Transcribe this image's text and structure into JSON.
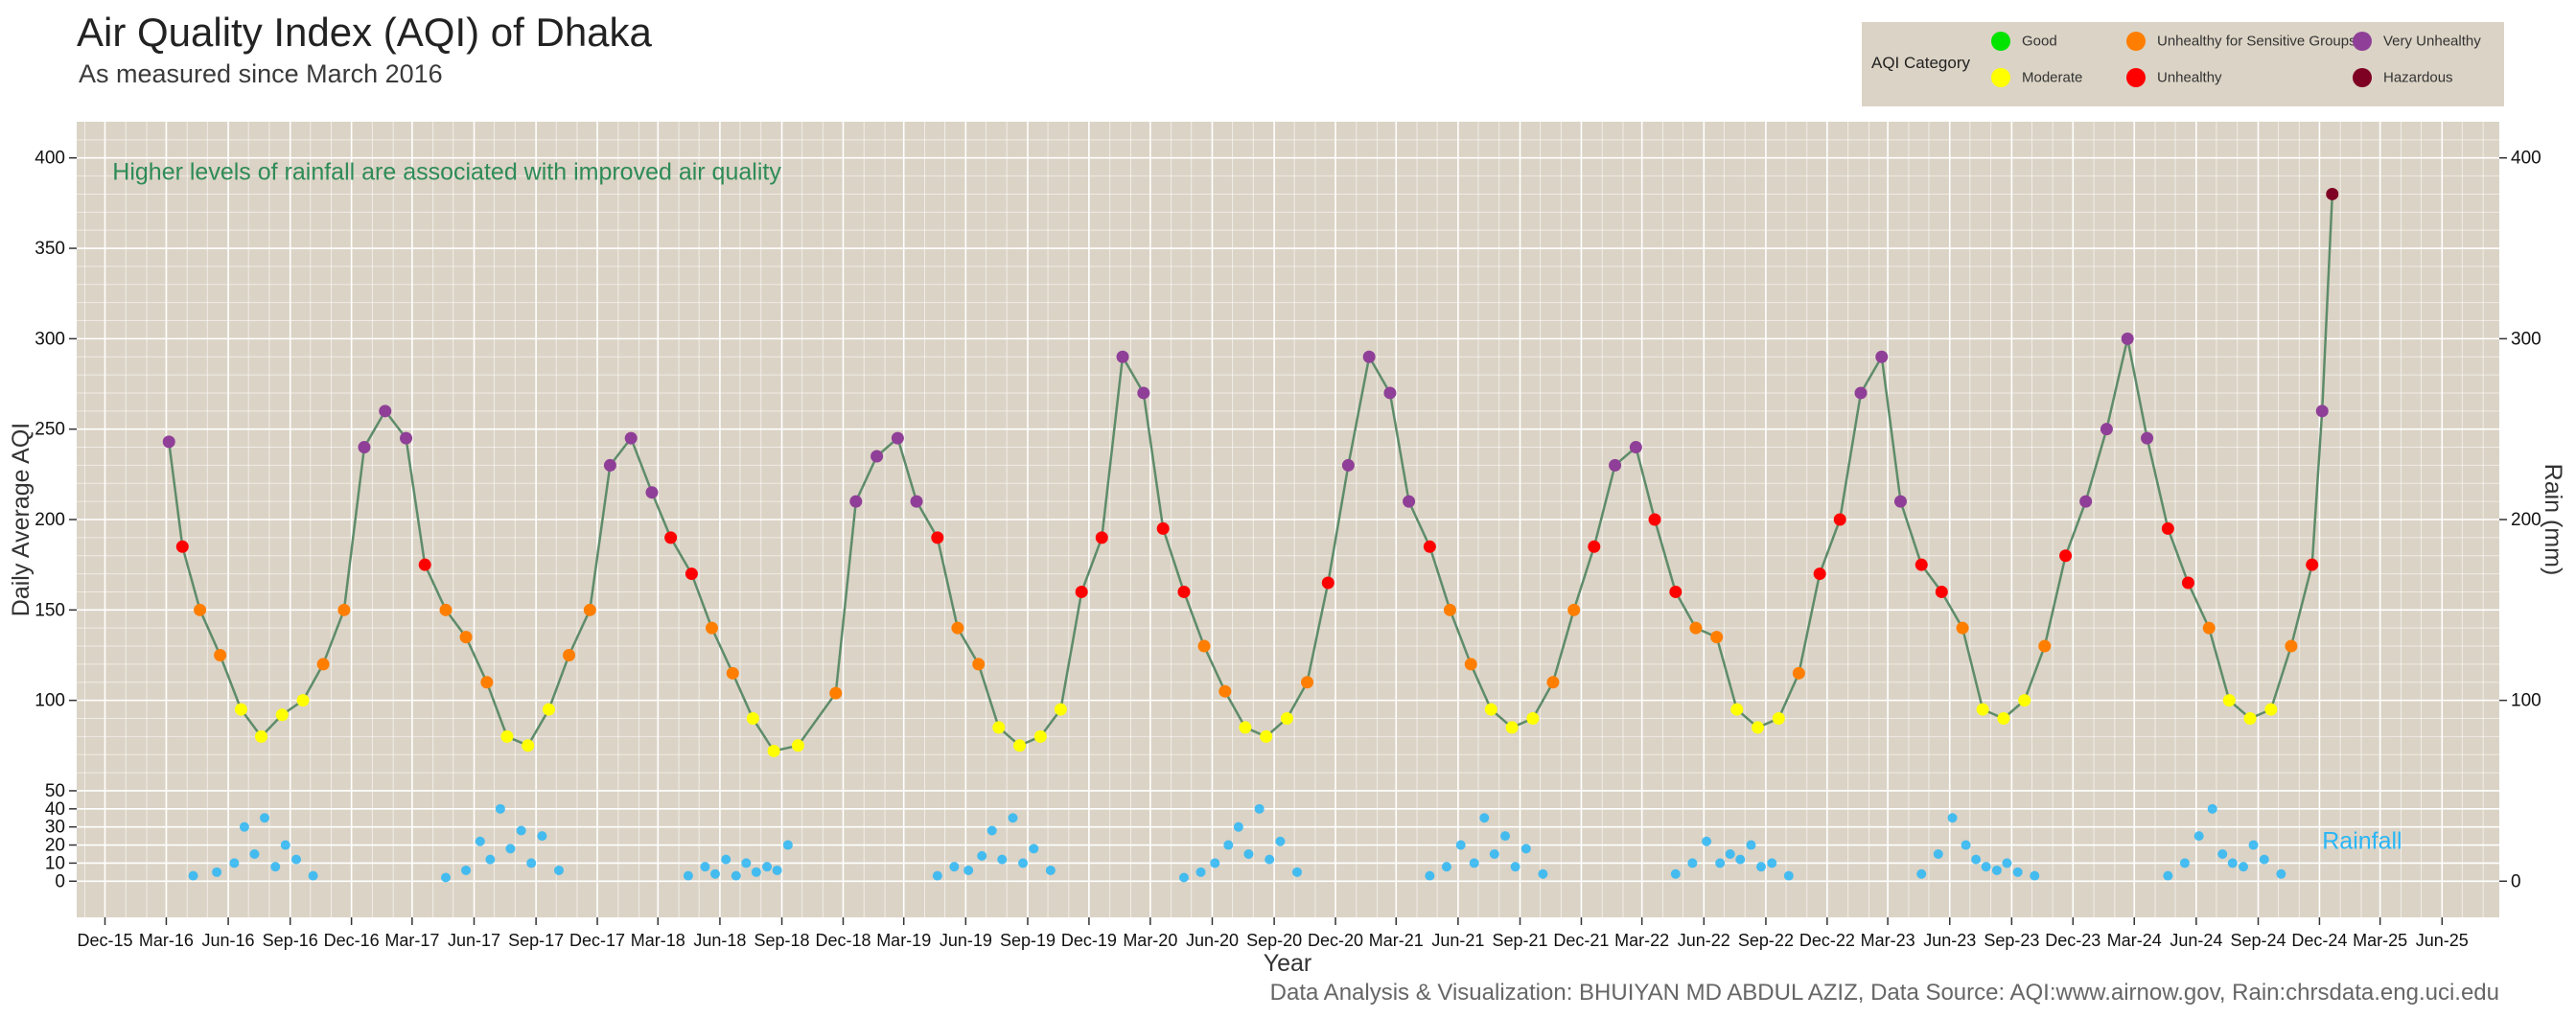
{
  "header": {
    "title": "Air Quality Index (AQI) of Dhaka",
    "subtitle": "As measured since March 2016"
  },
  "footer": {
    "caption": "Data Analysis & Visualization: BHUIYAN MD ABDUL AZIZ, Data Source: AQI:www.airnow.gov, Rain:chrsdata.eng.uci.edu"
  },
  "legend": {
    "title": "AQI Category",
    "items": [
      {
        "label": "Good",
        "color": "#00e400"
      },
      {
        "label": "Moderate",
        "color": "#ffff00"
      },
      {
        "label": "Unhealthy for Sensitive Groups",
        "color": "#ff7e00"
      },
      {
        "label": "Unhealthy",
        "color": "#ff0000"
      },
      {
        "label": "Very Unhealthy",
        "color": "#8f3f97"
      },
      {
        "label": "Hazardous",
        "color": "#7e0023"
      }
    ]
  },
  "colors": {
    "panel_background": "#dbd3c5",
    "grid": "#ffffff",
    "connector_line": "#5e8c6a",
    "rain_points": "#29b6f6",
    "annotation_text": "#2e8b57"
  },
  "chart_data": {
    "type": "scatter",
    "xlabel": "Year",
    "ylabel": "Daily Average AQI",
    "y2label": "Rain (mm)",
    "ylim": [
      -20,
      420
    ],
    "y_ticks": [
      0,
      10,
      20,
      30,
      40,
      50,
      100,
      150,
      200,
      250,
      300,
      350,
      400
    ],
    "y2_ticks": [
      0,
      100,
      200,
      300,
      400
    ],
    "x_axis": "date",
    "xlim": [
      "2015-10-20",
      "2025-08-25"
    ],
    "x_ticks": [
      {
        "date": "2015-12-01",
        "label": "Dec-15"
      },
      {
        "date": "2016-03-01",
        "label": "Mar-16"
      },
      {
        "date": "2016-06-01",
        "label": "Jun-16"
      },
      {
        "date": "2016-09-01",
        "label": "Sep-16"
      },
      {
        "date": "2016-12-01",
        "label": "Dec-16"
      },
      {
        "date": "2017-03-01",
        "label": "Mar-17"
      },
      {
        "date": "2017-06-01",
        "label": "Jun-17"
      },
      {
        "date": "2017-09-01",
        "label": "Sep-17"
      },
      {
        "date": "2017-12-01",
        "label": "Dec-17"
      },
      {
        "date": "2018-03-01",
        "label": "Mar-18"
      },
      {
        "date": "2018-06-01",
        "label": "Jun-18"
      },
      {
        "date": "2018-09-01",
        "label": "Sep-18"
      },
      {
        "date": "2018-12-01",
        "label": "Dec-18"
      },
      {
        "date": "2019-03-01",
        "label": "Mar-19"
      },
      {
        "date": "2019-06-01",
        "label": "Jun-19"
      },
      {
        "date": "2019-09-01",
        "label": "Sep-19"
      },
      {
        "date": "2019-12-01",
        "label": "Dec-19"
      },
      {
        "date": "2020-03-01",
        "label": "Mar-20"
      },
      {
        "date": "2020-06-01",
        "label": "Jun-20"
      },
      {
        "date": "2020-09-01",
        "label": "Sep-20"
      },
      {
        "date": "2020-12-01",
        "label": "Dec-20"
      },
      {
        "date": "2021-03-01",
        "label": "Mar-21"
      },
      {
        "date": "2021-06-01",
        "label": "Jun-21"
      },
      {
        "date": "2021-09-01",
        "label": "Sep-21"
      },
      {
        "date": "2021-12-01",
        "label": "Dec-21"
      },
      {
        "date": "2022-03-01",
        "label": "Mar-22"
      },
      {
        "date": "2022-06-01",
        "label": "Jun-22"
      },
      {
        "date": "2022-09-01",
        "label": "Sep-22"
      },
      {
        "date": "2022-12-01",
        "label": "Dec-22"
      },
      {
        "date": "2023-03-01",
        "label": "Mar-23"
      },
      {
        "date": "2023-06-01",
        "label": "Jun-23"
      },
      {
        "date": "2023-09-01",
        "label": "Sep-23"
      },
      {
        "date": "2023-12-01",
        "label": "Dec-23"
      },
      {
        "date": "2024-03-01",
        "label": "Mar-24"
      },
      {
        "date": "2024-06-01",
        "label": "Jun-24"
      },
      {
        "date": "2024-09-01",
        "label": "Sep-24"
      },
      {
        "date": "2024-12-01",
        "label": "Dec-24"
      },
      {
        "date": "2025-03-01",
        "label": "Mar-25"
      },
      {
        "date": "2025-06-01",
        "label": "Jun-25"
      }
    ],
    "annotations": [
      {
        "text": "Higher levels of rainfall are associated with improved air quality",
        "x": "2015-11-25",
        "y": 388
      },
      {
        "text": "Rainfall",
        "x": "2024-12-05",
        "y": 18
      }
    ],
    "aqi_breaks": [
      {
        "max": 50,
        "label": "Good"
      },
      {
        "max": 100,
        "label": "Moderate"
      },
      {
        "max": 150,
        "label": "Unhealthy for Sensitive Groups"
      },
      {
        "max": 200,
        "label": "Unhealthy"
      },
      {
        "max": 300,
        "label": "Very Unhealthy"
      },
      {
        "max": 10000,
        "label": "Hazardous"
      }
    ],
    "series": [
      {
        "name": "AQI",
        "x": [
          "2016-03-05",
          "2016-03-25",
          "2016-04-20",
          "2016-05-20",
          "2016-06-20",
          "2016-07-20",
          "2016-08-20",
          "2016-09-20",
          "2016-10-20",
          "2016-11-20",
          "2016-12-20",
          "2017-01-20",
          "2017-02-20",
          "2017-03-20",
          "2017-04-20",
          "2017-05-20",
          "2017-06-20",
          "2017-07-20",
          "2017-08-20",
          "2017-09-20",
          "2017-10-20",
          "2017-11-20",
          "2017-12-20",
          "2018-01-20",
          "2018-02-20",
          "2018-03-20",
          "2018-04-20",
          "2018-05-20",
          "2018-06-20",
          "2018-07-20",
          "2018-08-20",
          "2018-09-25",
          "2018-11-20",
          "2018-12-20",
          "2019-01-20",
          "2019-02-20",
          "2019-03-20",
          "2019-04-20",
          "2019-05-20",
          "2019-06-20",
          "2019-07-20",
          "2019-08-20",
          "2019-09-20",
          "2019-10-20",
          "2019-11-20",
          "2019-12-20",
          "2020-01-20",
          "2020-02-20",
          "2020-03-20",
          "2020-04-20",
          "2020-05-20",
          "2020-06-20",
          "2020-07-20",
          "2020-08-20",
          "2020-09-20",
          "2020-10-20",
          "2020-11-20",
          "2020-12-20",
          "2021-01-20",
          "2021-02-20",
          "2021-03-20",
          "2021-04-20",
          "2021-05-20",
          "2021-06-20",
          "2021-07-20",
          "2021-08-20",
          "2021-09-20",
          "2021-10-20",
          "2021-11-20",
          "2021-12-20",
          "2022-01-20",
          "2022-02-20",
          "2022-03-20",
          "2022-04-20",
          "2022-05-20",
          "2022-06-20",
          "2022-07-20",
          "2022-08-20",
          "2022-09-20",
          "2022-10-20",
          "2022-11-20",
          "2022-12-20",
          "2023-01-20",
          "2023-02-20",
          "2023-03-20",
          "2023-04-20",
          "2023-05-20",
          "2023-06-20",
          "2023-07-20",
          "2023-08-20",
          "2023-09-20",
          "2023-10-20",
          "2023-11-20",
          "2023-12-20",
          "2024-01-20",
          "2024-02-20",
          "2024-03-20",
          "2024-04-20",
          "2024-05-20",
          "2024-06-20",
          "2024-07-20",
          "2024-08-20",
          "2024-09-20",
          "2024-10-20",
          "2024-11-20",
          "2024-12-05",
          "2024-12-20"
        ],
        "values": [
          243,
          185,
          150,
          125,
          95,
          80,
          92,
          100,
          120,
          150,
          240,
          260,
          245,
          175,
          150,
          135,
          110,
          80,
          75,
          95,
          125,
          150,
          230,
          245,
          215,
          190,
          170,
          140,
          115,
          90,
          72,
          75,
          104,
          210,
          235,
          245,
          210,
          190,
          140,
          120,
          85,
          75,
          80,
          95,
          160,
          190,
          290,
          270,
          195,
          160,
          130,
          105,
          85,
          80,
          90,
          110,
          165,
          230,
          290,
          270,
          210,
          185,
          150,
          120,
          95,
          85,
          90,
          110,
          150,
          185,
          230,
          240,
          200,
          160,
          140,
          135,
          95,
          85,
          90,
          115,
          170,
          200,
          270,
          290,
          210,
          175,
          160,
          140,
          95,
          90,
          100,
          130,
          180,
          210,
          250,
          300,
          245,
          195,
          165,
          140,
          100,
          90,
          95,
          130,
          175,
          260,
          380
        ]
      },
      {
        "name": "Rainfall",
        "x": [
          "2016-04-10",
          "2016-05-15",
          "2016-06-10",
          "2016-06-25",
          "2016-07-10",
          "2016-07-25",
          "2016-08-10",
          "2016-08-25",
          "2016-09-10",
          "2016-10-05",
          "2017-04-20",
          "2017-05-20",
          "2017-06-10",
          "2017-06-25",
          "2017-07-10",
          "2017-07-25",
          "2017-08-10",
          "2017-08-25",
          "2017-09-10",
          "2017-10-05",
          "2018-04-15",
          "2018-05-10",
          "2018-05-25",
          "2018-06-10",
          "2018-06-25",
          "2018-07-10",
          "2018-07-25",
          "2018-08-10",
          "2018-08-25",
          "2018-09-10",
          "2019-04-20",
          "2019-05-15",
          "2019-06-05",
          "2019-06-25",
          "2019-07-10",
          "2019-07-25",
          "2019-08-10",
          "2019-08-25",
          "2019-09-10",
          "2019-10-05",
          "2020-04-20",
          "2020-05-15",
          "2020-06-05",
          "2020-06-25",
          "2020-07-10",
          "2020-07-25",
          "2020-08-10",
          "2020-08-25",
          "2020-09-10",
          "2020-10-05",
          "2021-04-20",
          "2021-05-15",
          "2021-06-05",
          "2021-06-25",
          "2021-07-10",
          "2021-07-25",
          "2021-08-10",
          "2021-08-25",
          "2021-09-10",
          "2021-10-05",
          "2022-04-20",
          "2022-05-15",
          "2022-06-05",
          "2022-06-25",
          "2022-07-10",
          "2022-07-25",
          "2022-08-10",
          "2022-08-25",
          "2022-09-10",
          "2022-10-05",
          "2023-04-20",
          "2023-05-15",
          "2023-06-05",
          "2023-06-25",
          "2023-07-10",
          "2023-07-25",
          "2023-08-10",
          "2023-08-25",
          "2023-09-10",
          "2023-10-05",
          "2024-04-20",
          "2024-05-15",
          "2024-06-05",
          "2024-06-25",
          "2024-07-10",
          "2024-07-25",
          "2024-08-10",
          "2024-08-25",
          "2024-09-10",
          "2024-10-05"
        ],
        "values": [
          3,
          5,
          10,
          30,
          15,
          35,
          8,
          20,
          12,
          3,
          2,
          6,
          22,
          12,
          40,
          18,
          28,
          10,
          25,
          6,
          3,
          8,
          4,
          12,
          3,
          10,
          5,
          8,
          6,
          20,
          3,
          8,
          6,
          14,
          28,
          12,
          35,
          10,
          18,
          6,
          2,
          5,
          10,
          20,
          30,
          15,
          40,
          12,
          22,
          5,
          3,
          8,
          20,
          10,
          35,
          15,
          25,
          8,
          18,
          4,
          4,
          10,
          22,
          10,
          15,
          12,
          20,
          8,
          10,
          3,
          4,
          15,
          35,
          20,
          12,
          8,
          6,
          10,
          5,
          3,
          3,
          10,
          25,
          40,
          15,
          10,
          8,
          20,
          12,
          4
        ]
      }
    ]
  }
}
